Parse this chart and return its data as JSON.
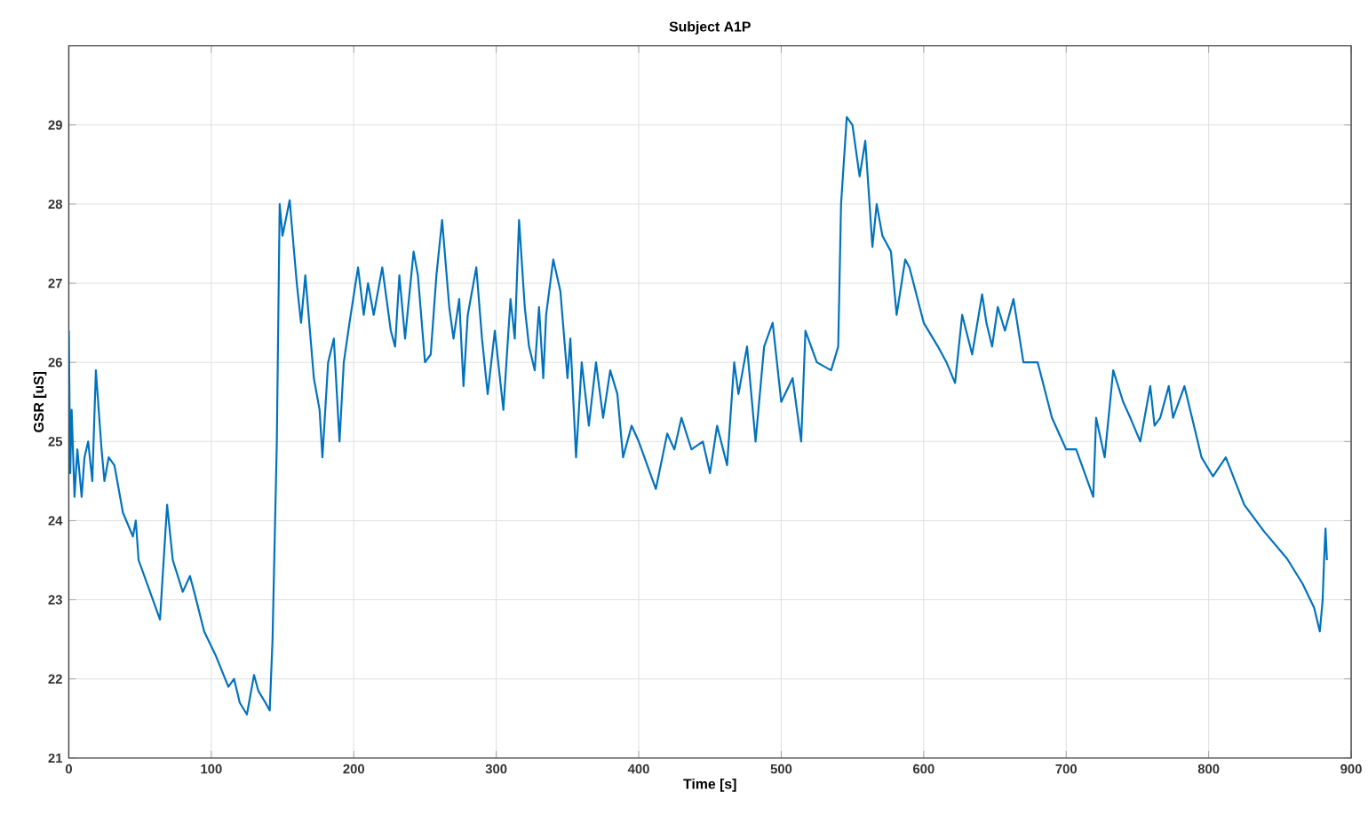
{
  "chart_data": {
    "type": "line",
    "title": "Subject A1P",
    "xlabel": "Time [s]",
    "ylabel": "GSR [uS]",
    "x": [
      0,
      1,
      2,
      4,
      6,
      9,
      11,
      13.6,
      16.5,
      19,
      23,
      25,
      28,
      32,
      38,
      45,
      47,
      49,
      55,
      64,
      69,
      73,
      80,
      85,
      88,
      95,
      103,
      112,
      116,
      120,
      125,
      130,
      133,
      138,
      141,
      143,
      146,
      148,
      150,
      155,
      160,
      163,
      166,
      172,
      176,
      178,
      182,
      186,
      190,
      193,
      197,
      203,
      207,
      210,
      214,
      220,
      226,
      229,
      232,
      236,
      242,
      245,
      250,
      254,
      258,
      262,
      267,
      270,
      274,
      277,
      280,
      286,
      290,
      294,
      299,
      305,
      310,
      313,
      316,
      320,
      323,
      327,
      330,
      333,
      335,
      340,
      345,
      350,
      352,
      356,
      360,
      365,
      370,
      375,
      380,
      385,
      389,
      395,
      400,
      412,
      420,
      425,
      430,
      437,
      445,
      450,
      455,
      462,
      467,
      470,
      476,
      482,
      488,
      494,
      500,
      508,
      514,
      517,
      525,
      535,
      540,
      542,
      546,
      550,
      555,
      559,
      564,
      567,
      571,
      577,
      581,
      587,
      590,
      600,
      610,
      616,
      622,
      627,
      634,
      641,
      644,
      648,
      652,
      657,
      663,
      670,
      680,
      690,
      700,
      707,
      719,
      721,
      727,
      733,
      740,
      745,
      752,
      759,
      762,
      766,
      772,
      775,
      783,
      787,
      795,
      803,
      812,
      825,
      839,
      855,
      866,
      874,
      878,
      880,
      881,
      882,
      883
    ],
    "values": [
      26.4,
      24.6,
      25.4,
      24.3,
      24.9,
      24.3,
      24.8,
      25.0,
      24.5,
      25.9,
      24.9,
      24.5,
      24.8,
      24.7,
      24.1,
      23.8,
      24.0,
      23.5,
      23.2,
      22.75,
      24.2,
      23.5,
      23.1,
      23.3,
      23.1,
      22.6,
      22.3,
      21.9,
      22.0,
      21.7,
      21.55,
      22.05,
      21.85,
      21.7,
      21.6,
      22.5,
      25.0,
      28.0,
      27.6,
      28.05,
      27.0,
      26.5,
      27.1,
      25.8,
      25.4,
      24.8,
      26.0,
      26.3,
      25.0,
      26.0,
      26.5,
      27.2,
      26.6,
      27.0,
      26.6,
      27.2,
      26.4,
      26.2,
      27.1,
      26.3,
      27.4,
      27.1,
      26.0,
      26.1,
      27.1,
      27.8,
      26.7,
      26.3,
      26.8,
      25.7,
      26.6,
      27.2,
      26.3,
      25.6,
      26.4,
      25.4,
      26.8,
      26.3,
      27.8,
      26.7,
      26.2,
      25.9,
      26.7,
      25.8,
      26.6,
      27.3,
      26.9,
      25.8,
      26.3,
      24.8,
      26.0,
      25.2,
      26.0,
      25.3,
      25.9,
      25.6,
      24.8,
      25.2,
      25.0,
      24.4,
      25.1,
      24.9,
      25.3,
      24.9,
      25.0,
      24.6,
      25.2,
      24.7,
      26.0,
      25.6,
      26.2,
      25.0,
      26.2,
      26.5,
      25.5,
      25.8,
      25.0,
      26.4,
      26.0,
      25.9,
      26.2,
      28.0,
      29.1,
      29.0,
      28.35,
      28.8,
      27.46,
      28.0,
      27.6,
      27.4,
      26.6,
      27.3,
      27.2,
      26.5,
      26.2,
      26.0,
      25.74,
      26.6,
      26.1,
      26.86,
      26.5,
      26.2,
      26.7,
      26.4,
      26.8,
      26.0,
      26.0,
      25.3,
      24.9,
      24.9,
      24.3,
      25.3,
      24.8,
      25.9,
      25.5,
      25.3,
      25.0,
      25.7,
      25.2,
      25.3,
      25.7,
      25.3,
      25.7,
      25.4,
      24.8,
      24.56,
      24.8,
      24.2,
      23.86,
      23.52,
      23.2,
      22.9,
      22.6,
      23.0,
      23.5,
      23.9,
      23.5
    ],
    "color": "#0072bd",
    "xlim": [
      0,
      900
    ],
    "ylim": [
      21,
      30
    ],
    "xticks": [
      0,
      100,
      200,
      300,
      400,
      500,
      600,
      700,
      800,
      900
    ],
    "yticks": [
      21,
      22,
      23,
      24,
      25,
      26,
      27,
      28,
      29
    ],
    "grid": true
  }
}
